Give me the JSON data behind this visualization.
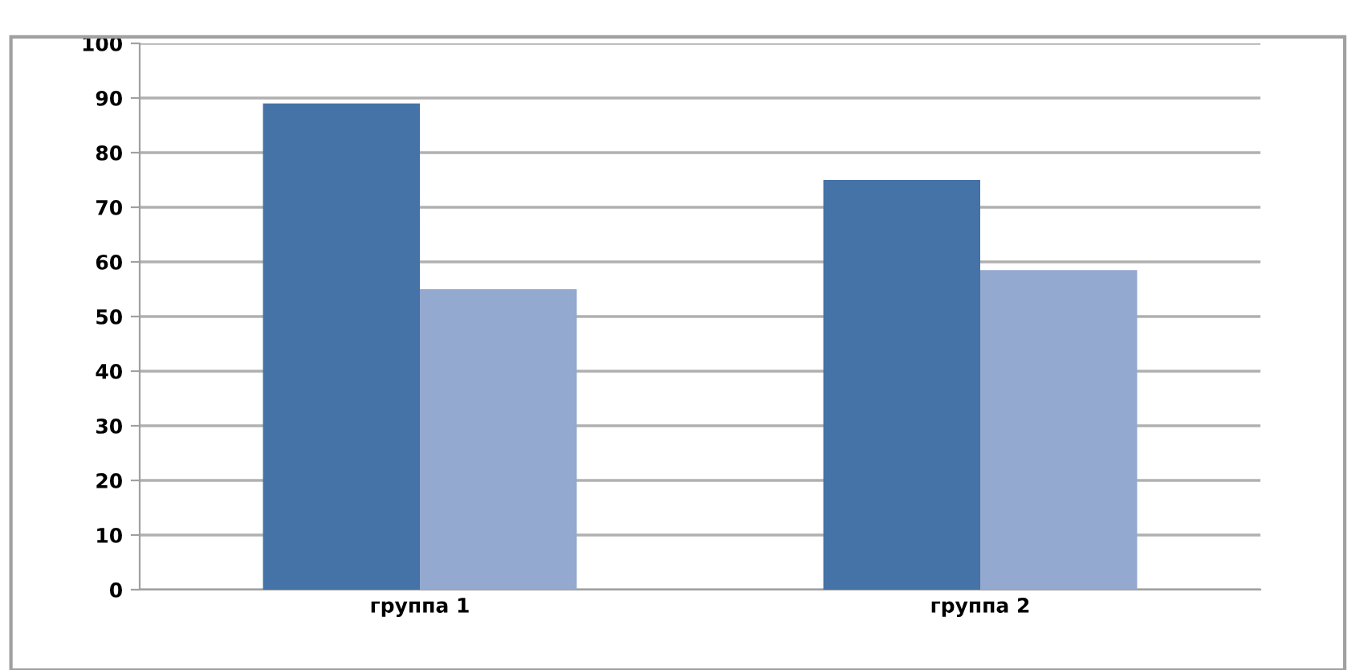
{
  "chart_data": {
    "type": "bar",
    "categories": [
      "группа 1",
      "группа 2"
    ],
    "series": [
      {
        "color": "#4572a7",
        "values": [
          89,
          75
        ]
      },
      {
        "color": "#93a9cf",
        "values": [
          55,
          58.5
        ]
      }
    ],
    "ylim": [
      0,
      100
    ],
    "yticks": [
      0,
      10,
      20,
      30,
      40,
      50,
      60,
      70,
      80,
      90,
      100
    ],
    "grid": "y",
    "legend": false
  }
}
